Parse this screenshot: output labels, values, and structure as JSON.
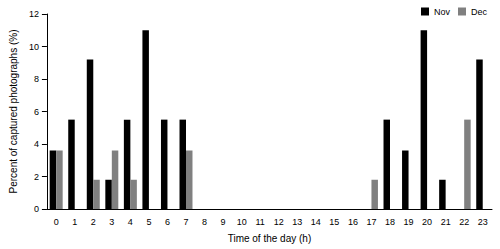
{
  "chart_data": {
    "type": "bar",
    "x_label": "Time of the day (h)",
    "y_label": "Percent of captured photographs (%)",
    "categories": [
      "0",
      "1",
      "2",
      "3",
      "4",
      "5",
      "6",
      "7",
      "8",
      "9",
      "10",
      "11",
      "12",
      "13",
      "14",
      "15",
      "16",
      "17",
      "18",
      "19",
      "20",
      "21",
      "22",
      "23"
    ],
    "series": [
      {
        "name": "Nov",
        "color": "#000000",
        "values": [
          3.6,
          5.5,
          9.2,
          1.8,
          5.5,
          11,
          5.5,
          5.5,
          0,
          0,
          0,
          0,
          0,
          0,
          0,
          0,
          0,
          0,
          5.5,
          3.6,
          11,
          1.8,
          0,
          9.2
        ]
      },
      {
        "name": "Dec",
        "color": "#808080",
        "values": [
          3.6,
          0,
          1.8,
          3.6,
          1.8,
          0,
          0,
          3.6,
          0,
          0,
          0,
          0,
          0,
          0,
          0,
          0,
          0,
          1.8,
          0,
          0,
          0,
          0,
          5.5,
          0
        ]
      }
    ],
    "ylim": [
      0,
      12
    ],
    "yticks": [
      0,
      2,
      4,
      6,
      8,
      10,
      12
    ],
    "grid": false,
    "legend": "top-right"
  }
}
